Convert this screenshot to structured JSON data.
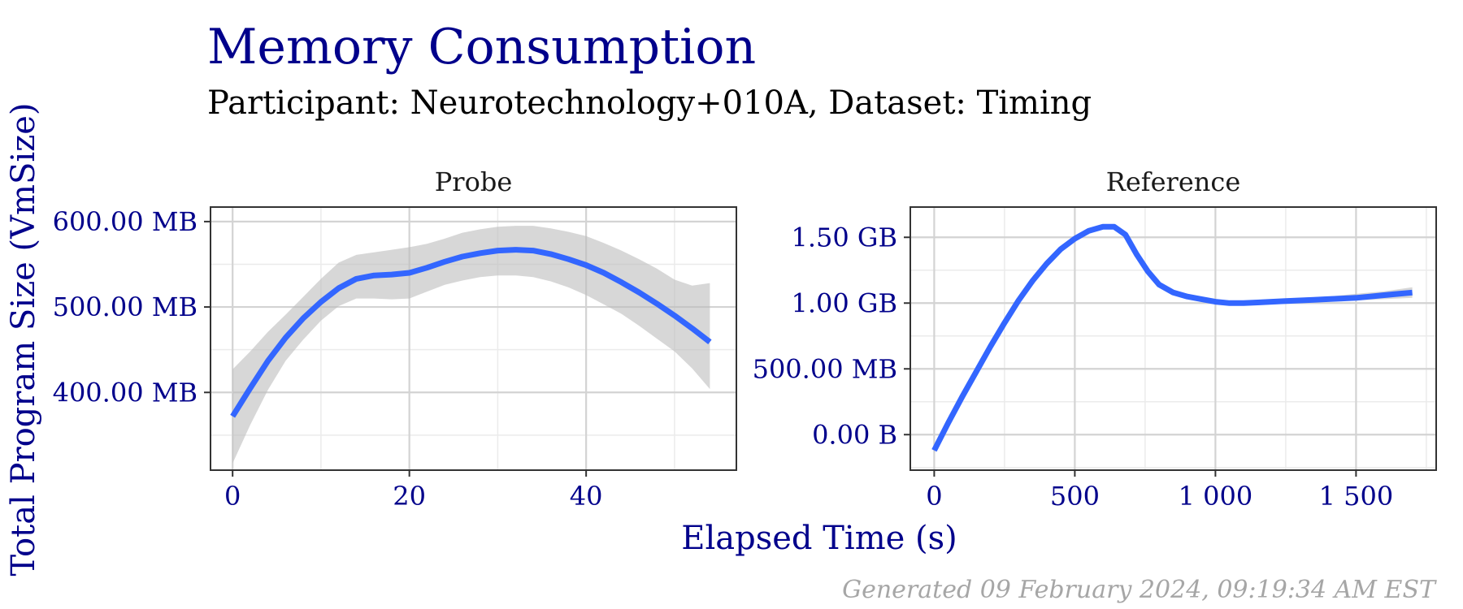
{
  "colors": {
    "title": "#00008b",
    "subtitle": "#000000",
    "tick": "#00008b",
    "axis_title": "#00008b",
    "strip": "#1a1a1a",
    "footer": "#a6a6a6",
    "line": "#3366ff",
    "ribbon": "#bdbdbd",
    "grid": "#d3d3d3",
    "panel_border": "#333333"
  },
  "title": "Memory Consumption",
  "subtitle": "Participant: Neurotechnology+010A, Dataset: Timing",
  "footer": "Generated 09 February 2024, 09:19:34 AM EST",
  "chart_data": {
    "type": "line",
    "xlabel": "Elapsed Time (s)",
    "ylabel": "Total Program Size (VmSize)",
    "panels": [
      {
        "name": "Probe",
        "xlim": [
          -2.5,
          57
        ],
        "ylim": [
          309,
          617
        ],
        "x_ticks": [
          0,
          20,
          40
        ],
        "x_tick_labels": [
          "0",
          "20",
          "40"
        ],
        "y_ticks": [
          400,
          500,
          600
        ],
        "y_tick_labels": [
          "400.00 MB",
          "500.00 MB",
          "600.00 MB"
        ],
        "series": [
          {
            "x": [
              0,
              2,
              4,
              6,
              8,
              10,
              12,
              14,
              16,
              18,
              20,
              22,
              24,
              26,
              28,
              30,
              32,
              34,
              36,
              38,
              40,
              42,
              44,
              46,
              48,
              50,
              52,
              54
            ],
            "y": [
              372,
              405,
              437,
              464,
              487,
              506,
              522,
              533,
              537,
              538,
              540,
              546,
              553,
              559,
              563,
              566,
              567,
              566,
              562,
              556,
              549,
              540,
              529,
              517,
              504,
              490,
              475,
              459
            ],
            "y_low": [
              317,
              362,
              403,
              437,
              462,
              484,
              501,
              510,
              510,
              509,
              510,
              518,
              526,
              531,
              535,
              537,
              537,
              535,
              530,
              523,
              514,
              503,
              492,
              478,
              463,
              448,
              428,
              404
            ],
            "y_high": [
              427,
              448,
              471,
              491,
              512,
              533,
              552,
              561,
              564,
              567,
              570,
              574,
              580,
              587,
              591,
              594,
              595,
              595,
              592,
              588,
              583,
              575,
              566,
              556,
              545,
              532,
              525,
              528
            ]
          }
        ]
      },
      {
        "name": "Reference",
        "xlim": [
          -85,
          1785
        ],
        "ylim": [
          -0.27,
          1.73
        ],
        "x_ticks": [
          0,
          500,
          1000,
          1500
        ],
        "x_tick_labels": [
          "0",
          "500",
          "1 000",
          "1 500"
        ],
        "y_ticks": [
          0,
          0.5,
          1.0,
          1.5
        ],
        "y_tick_labels": [
          "0.00 B",
          "500.00 MB",
          "1.00 GB",
          "1.50 GB"
        ],
        "series": [
          {
            "x": [
              0,
              50,
              100,
              150,
              200,
              250,
              300,
              350,
              400,
              450,
              500,
              550,
              600,
              640,
              680,
              720,
              760,
              800,
              850,
              900,
              950,
              1000,
              1050,
              1100,
              1150,
              1200,
              1250,
              1300,
              1350,
              1400,
              1450,
              1500,
              1550,
              1600,
              1650,
              1700
            ],
            "y": [
              -0.12,
              0.09,
              0.29,
              0.48,
              0.67,
              0.85,
              1.02,
              1.17,
              1.3,
              1.41,
              1.49,
              1.55,
              1.58,
              1.58,
              1.52,
              1.37,
              1.24,
              1.14,
              1.08,
              1.05,
              1.03,
              1.01,
              1.0,
              1.0,
              1.005,
              1.01,
              1.015,
              1.02,
              1.025,
              1.03,
              1.035,
              1.04,
              1.05,
              1.06,
              1.07,
              1.08
            ],
            "y_low": [
              -0.14,
              0.07,
              0.27,
              0.46,
              0.65,
              0.83,
              1.0,
              1.15,
              1.28,
              1.39,
              1.47,
              1.53,
              1.56,
              1.56,
              1.5,
              1.35,
              1.22,
              1.12,
              1.06,
              1.03,
              1.01,
              0.99,
              0.98,
              0.98,
              0.985,
              0.99,
              0.995,
              1.0,
              1.005,
              1.01,
              1.015,
              1.02,
              1.025,
              1.03,
              1.035,
              1.04
            ],
            "y_high": [
              -0.1,
              0.11,
              0.31,
              0.5,
              0.69,
              0.87,
              1.04,
              1.19,
              1.32,
              1.43,
              1.51,
              1.57,
              1.6,
              1.6,
              1.54,
              1.39,
              1.26,
              1.16,
              1.1,
              1.07,
              1.05,
              1.03,
              1.02,
              1.02,
              1.025,
              1.03,
              1.035,
              1.04,
              1.045,
              1.05,
              1.06,
              1.07,
              1.08,
              1.09,
              1.105,
              1.12
            ]
          }
        ]
      }
    ]
  }
}
